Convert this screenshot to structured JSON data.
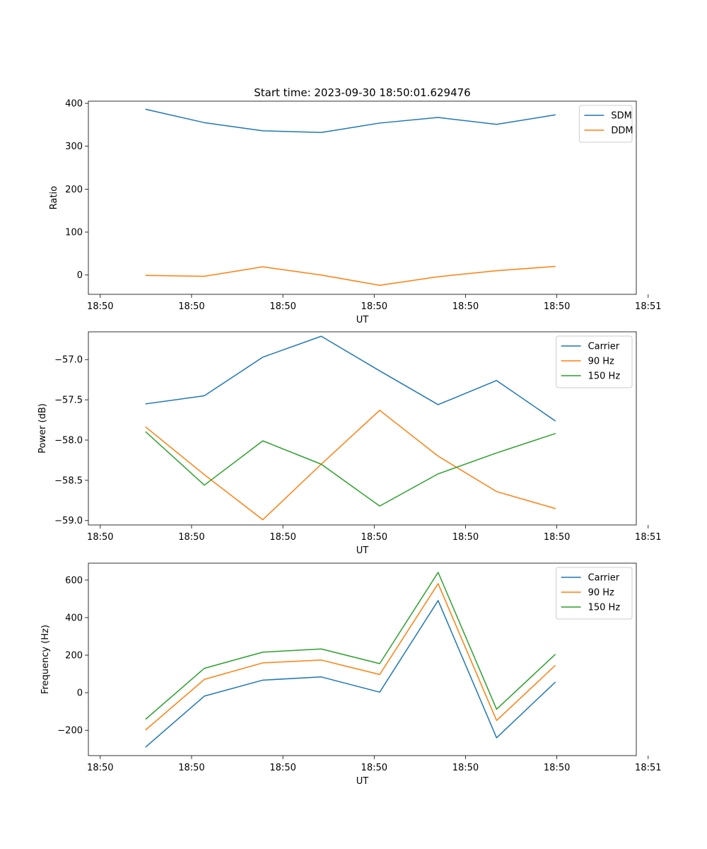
{
  "figure_title": "Start time: 2023-09-30 18:50:01.629476",
  "colors": {
    "blue": "#1f77b4",
    "orange": "#ff7f0e",
    "green": "#2ca02c",
    "axis": "#000000",
    "legend_border": "#cccccc"
  },
  "chart_data": [
    {
      "type": "line",
      "title": "Start time: 2023-09-30 18:50:01.629476",
      "xlabel": "UT",
      "ylabel": "Ratio",
      "x": [
        0.93,
        1.25,
        1.57,
        1.89,
        2.21,
        2.53,
        2.85,
        3.17
      ],
      "xlim": [
        0.615,
        3.615
      ],
      "x_tick_values": [
        0.68,
        1.18,
        1.68,
        2.18,
        2.68,
        3.18,
        3.68
      ],
      "x_tick_labels": [
        "18:50",
        "18:50",
        "18:50",
        "18:50",
        "18:50",
        "18:50",
        "18:51"
      ],
      "ylim": [
        -45,
        405
      ],
      "y_tick_values": [
        0,
        100,
        200,
        300,
        400
      ],
      "y_tick_labels": [
        "0",
        "100",
        "200",
        "300",
        "400"
      ],
      "legend_position": "upper right",
      "series": [
        {
          "name": "SDM",
          "color": "#1f77b4",
          "values": [
            386,
            355,
            336,
            332,
            354,
            367,
            351,
            373
          ]
        },
        {
          "name": "DDM",
          "color": "#ff7f0e",
          "values": [
            -1,
            -3,
            19,
            0,
            -24,
            -4,
            10,
            20
          ]
        }
      ]
    },
    {
      "type": "line",
      "title": "",
      "xlabel": "UT",
      "ylabel": "Power (dB)",
      "x": [
        0.93,
        1.25,
        1.57,
        1.89,
        2.21,
        2.53,
        2.85,
        3.17
      ],
      "xlim": [
        0.615,
        3.615
      ],
      "x_tick_values": [
        0.68,
        1.18,
        1.68,
        2.18,
        2.68,
        3.18,
        3.68
      ],
      "x_tick_labels": [
        "18:50",
        "18:50",
        "18:50",
        "18:50",
        "18:50",
        "18:50",
        "18:51"
      ],
      "ylim": [
        -59.055,
        -56.655
      ],
      "y_tick_values": [
        -59.0,
        -58.5,
        -58.0,
        -57.5,
        -57.0
      ],
      "y_tick_labels": [
        "−59.0",
        "−58.5",
        "−58.0",
        "−57.5",
        "−57.0"
      ],
      "legend_position": "upper right",
      "series": [
        {
          "name": "Carrier",
          "color": "#1f77b4",
          "values": [
            -57.55,
            -57.45,
            -56.97,
            -56.71,
            -57.14,
            -57.56,
            -57.26,
            -57.76
          ]
        },
        {
          "name": "90 Hz",
          "color": "#ff7f0e",
          "values": [
            -57.84,
            -58.43,
            -58.99,
            -58.3,
            -57.63,
            -58.2,
            -58.64,
            -58.85
          ]
        },
        {
          "name": "150 Hz",
          "color": "#2ca02c",
          "values": [
            -57.9,
            -58.56,
            -58.01,
            -58.3,
            -58.82,
            -58.42,
            -58.16,
            -57.92
          ]
        }
      ]
    },
    {
      "type": "line",
      "title": "",
      "xlabel": "UT",
      "ylabel": "Frequency (Hz)",
      "x": [
        0.93,
        1.25,
        1.57,
        1.89,
        2.21,
        2.53,
        2.85,
        3.17
      ],
      "xlim": [
        0.615,
        3.615
      ],
      "x_tick_values": [
        0.68,
        1.18,
        1.68,
        2.18,
        2.68,
        3.18,
        3.68
      ],
      "x_tick_labels": [
        "18:50",
        "18:50",
        "18:50",
        "18:50",
        "18:50",
        "18:50",
        "18:51"
      ],
      "ylim": [
        -335,
        690
      ],
      "y_tick_values": [
        -200,
        0,
        200,
        400,
        600
      ],
      "y_tick_labels": [
        "−200",
        "0",
        "200",
        "400",
        "600"
      ],
      "legend_position": "upper right",
      "series": [
        {
          "name": "Carrier",
          "color": "#1f77b4",
          "values": [
            -288,
            -18,
            67,
            84,
            3,
            491,
            -240,
            55
          ]
        },
        {
          "name": "90 Hz",
          "color": "#ff7f0e",
          "values": [
            -197,
            71,
            159,
            174,
            97,
            581,
            -148,
            144
          ]
        },
        {
          "name": "150 Hz",
          "color": "#2ca02c",
          "values": [
            -140,
            130,
            216,
            233,
            155,
            641,
            -88,
            203
          ]
        }
      ]
    }
  ]
}
